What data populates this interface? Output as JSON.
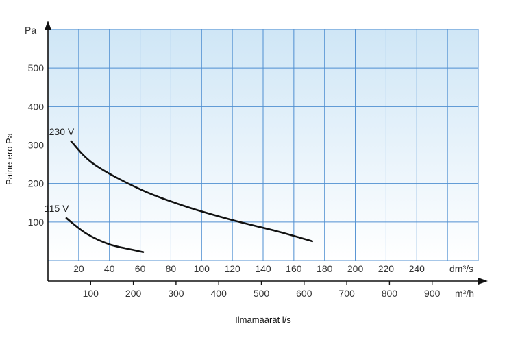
{
  "chart_data": {
    "type": "line",
    "y_axis": {
      "unit_label": "Pa",
      "title": "Paine-ero Pa",
      "ticks": [
        100,
        200,
        300,
        400,
        500
      ],
      "range": [
        0,
        600
      ]
    },
    "x_axis_primary": {
      "unit_label": "dm³/s",
      "ticks": [
        20,
        40,
        60,
        80,
        100,
        120,
        140,
        160,
        180,
        200,
        220,
        240
      ],
      "range": [
        0,
        280
      ]
    },
    "x_axis_secondary": {
      "unit_label": "m³/h",
      "ticks": [
        100,
        200,
        300,
        400,
        500,
        600,
        700,
        800,
        900
      ]
    },
    "xlabel": "Ilmamäärät l/s",
    "grid": true,
    "series": [
      {
        "name": "230 V",
        "x": [
          15,
          30,
          60,
          90,
          120,
          150,
          172
        ],
        "y": [
          310,
          250,
          185,
          140,
          105,
          75,
          50
        ]
      },
      {
        "name": "115 V",
        "x": [
          12,
          25,
          40,
          55,
          62
        ],
        "y": [
          110,
          70,
          42,
          28,
          22
        ]
      }
    ]
  }
}
